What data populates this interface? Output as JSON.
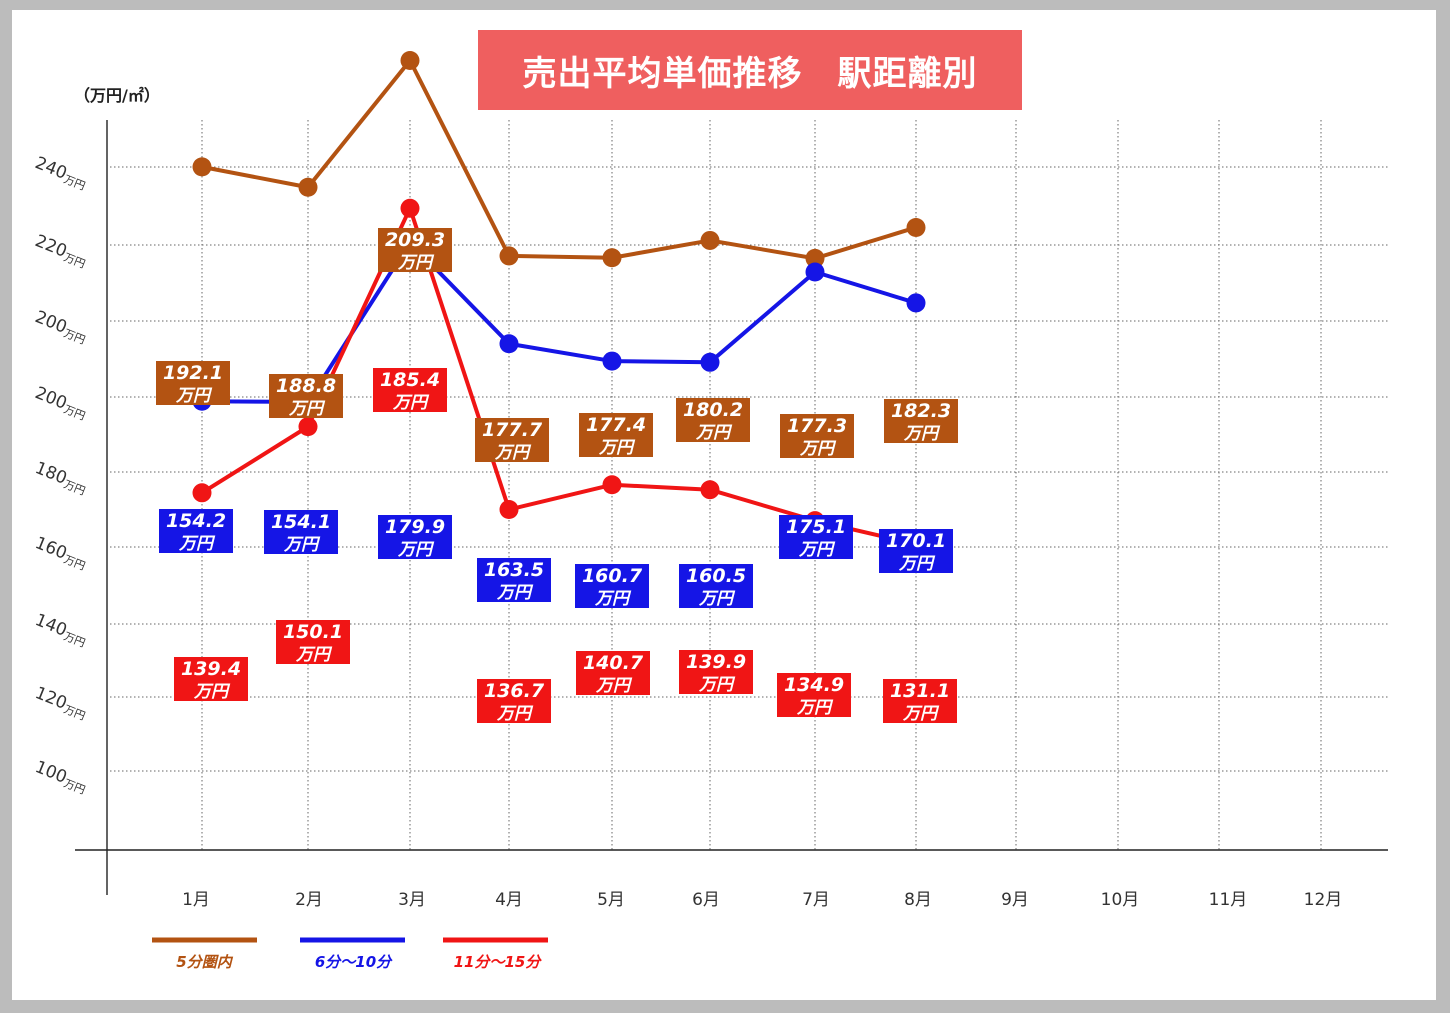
{
  "title": "売出平均単価推移　駅距離別",
  "unit_label": "（万円/㎡）",
  "chart_data": {
    "type": "line",
    "title": "売出平均単価推移　駅距離別",
    "ylabel": "（万円/㎡）",
    "categories": [
      "1月",
      "2月",
      "3月",
      "4月",
      "5月",
      "6月",
      "7月",
      "8月",
      "9月",
      "10月",
      "11月",
      "12月"
    ],
    "y_tick_labels": [
      "100",
      "120",
      "140",
      "160",
      "180",
      "200",
      "200",
      "220",
      "240"
    ],
    "y_tick_unit": "万円",
    "value_unit": "万円",
    "grid": true,
    "legend_position": "bottom-left",
    "series": [
      {
        "name": "5分圏内",
        "color": "#b35312",
        "values": [
          192.1,
          188.8,
          209.3,
          177.7,
          177.4,
          180.2,
          177.3,
          182.3,
          null,
          null,
          null,
          null
        ]
      },
      {
        "name": "6分～10分",
        "color": "#1515e6",
        "values": [
          154.2,
          154.1,
          179.9,
          163.5,
          160.7,
          160.5,
          175.1,
          170.1,
          null,
          null,
          null,
          null
        ]
      },
      {
        "name": "11分～15分",
        "color": "#f01515",
        "values": [
          139.4,
          150.1,
          185.4,
          136.7,
          140.7,
          139.9,
          134.9,
          131.1,
          null,
          null,
          null,
          null
        ]
      }
    ]
  }
}
